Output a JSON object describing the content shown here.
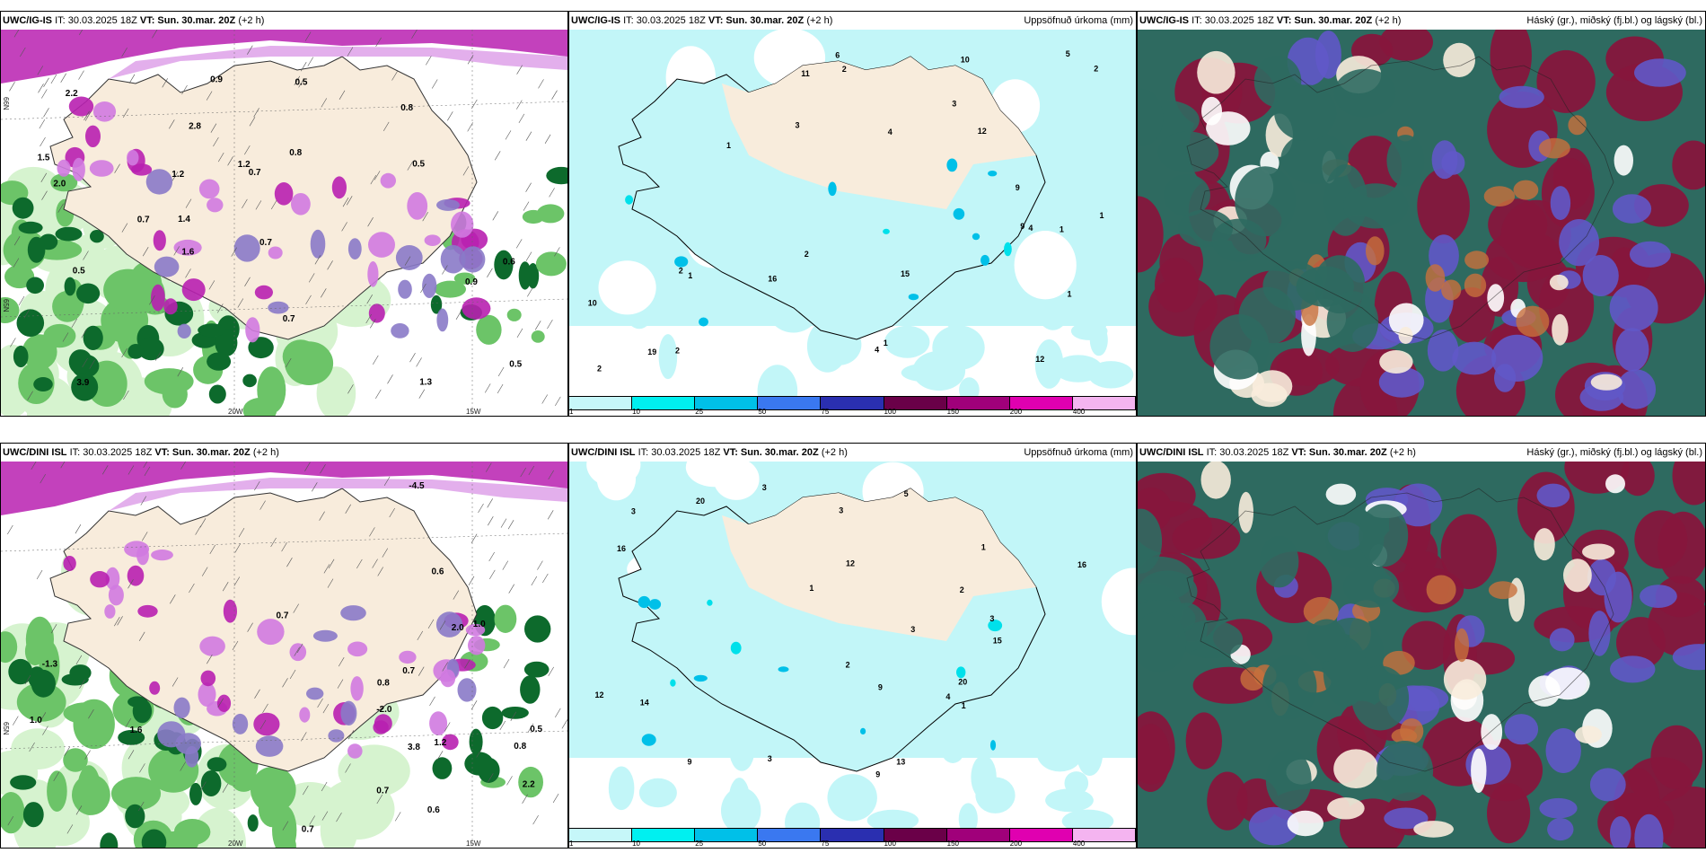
{
  "panels": [
    {
      "model": "UWC/IG-IS",
      "it": "IT: 30.03.2025 18Z",
      "vt_label": "VT:",
      "vt": "Sun. 30.mar. 20Z",
      "lead": "(+2 h)",
      "right_label": "",
      "type": "wind"
    },
    {
      "model": "UWC/IG-IS",
      "it": "IT: 30.03.2025 18Z",
      "vt_label": "VT:",
      "vt": "Sun. 30.mar. 20Z",
      "lead": "(+2 h)",
      "right_label": "Uppsöfnuð úrkoma (mm)",
      "type": "precip"
    },
    {
      "model": "UWC/IG-IS",
      "it": "IT: 30.03.2025 18Z",
      "vt_label": "VT:",
      "vt": "Sun. 30.mar. 20Z",
      "lead": "(+2 h)",
      "right_label": "Háský (gr.), miðský (fj.bl.) og lágský (bl.)",
      "type": "cloud"
    },
    {
      "model": "UWC/DINI ISL",
      "it": "IT: 30.03.2025 18Z",
      "vt_label": "VT:",
      "vt": "Sun. 30.mar. 20Z",
      "lead": "(+2 h)",
      "right_label": "",
      "type": "wind"
    },
    {
      "model": "UWC/DINI ISL",
      "it": "IT: 30.03.2025 18Z",
      "vt_label": "VT:",
      "vt": "Sun. 30.mar. 20Z",
      "lead": "(+2 h)",
      "right_label": "Uppsöfnuð úrkoma (mm)",
      "type": "precip"
    },
    {
      "model": "UWC/DINI ISL",
      "it": "IT: 30.03.2025 18Z",
      "vt_label": "VT:",
      "vt": "Sun. 30.mar. 20Z",
      "lead": "(+2 h)",
      "right_label": "Háský (gr.), miðský (fj.bl.) og lágský (bl.)",
      "type": "cloud"
    }
  ],
  "colorbar": {
    "ticks": [
      "1",
      "10",
      "25",
      "50",
      "75",
      "100",
      "150",
      "200",
      "400"
    ],
    "colors": [
      "#c6f7f9",
      "#00f0f0",
      "#00c0e8",
      "#3a78f0",
      "#2a2fb0",
      "#6a0048",
      "#a0007a",
      "#e000b0",
      "#f4b4f0"
    ]
  },
  "lon_labels": [
    "20W",
    "15W"
  ],
  "lat_labels": [
    "65N",
    "66N"
  ],
  "wind_values_top": [
    "1.3",
    "0.5",
    "3.9",
    "0.7",
    "1.6",
    "1.5",
    "0.5",
    "1.4",
    "0.7",
    "2.2",
    "2.0",
    "0.9",
    "0.8",
    "0.6",
    "1.2",
    "0.9",
    "0.7",
    "0.5",
    "2.8",
    "1.2",
    "0.8",
    "0.5",
    "0.7"
  ],
  "wind_values_bottom": [
    "1.2",
    "0.7",
    "1.6",
    "3.8",
    "-1.3",
    "-4.5",
    "-2.0",
    "0.5",
    "2.0",
    "0.8",
    "0.7",
    "0.6",
    "1.0",
    "0.7",
    "2.2",
    "0.6",
    "0.7",
    "0.8",
    "1.0"
  ],
  "precip_values_top": [
    "2",
    "2",
    "1",
    "2",
    "3",
    "1",
    "1",
    "2",
    "1",
    "10",
    "9",
    "6",
    "4",
    "3",
    "12",
    "9",
    "19",
    "16",
    "12",
    "11",
    "15",
    "10",
    "5",
    "4",
    "4",
    "2",
    "2",
    "1",
    "1"
  ],
  "precip_values_bottom": [
    "3",
    "2",
    "3",
    "3",
    "1",
    "1",
    "20",
    "12",
    "9",
    "9",
    "13",
    "14",
    "16",
    "12",
    "15",
    "20",
    "16",
    "9",
    "4",
    "5",
    "3",
    "2",
    "3",
    "1",
    "3"
  ],
  "colors": {
    "land": "#f8ecdc",
    "precip_light": "#c2f6f8",
    "wind_light": "#d6f3cf",
    "wind_mid": "#6cc468",
    "wind_dark": "#0d6a2c",
    "magenta": "#b820b0",
    "lavender": "#d07ae0",
    "cloud_teal": "#2e6a60",
    "cloud_maroon": "#86163c",
    "cloud_blue": "#6058c8",
    "cloud_orange": "#c8703c"
  }
}
